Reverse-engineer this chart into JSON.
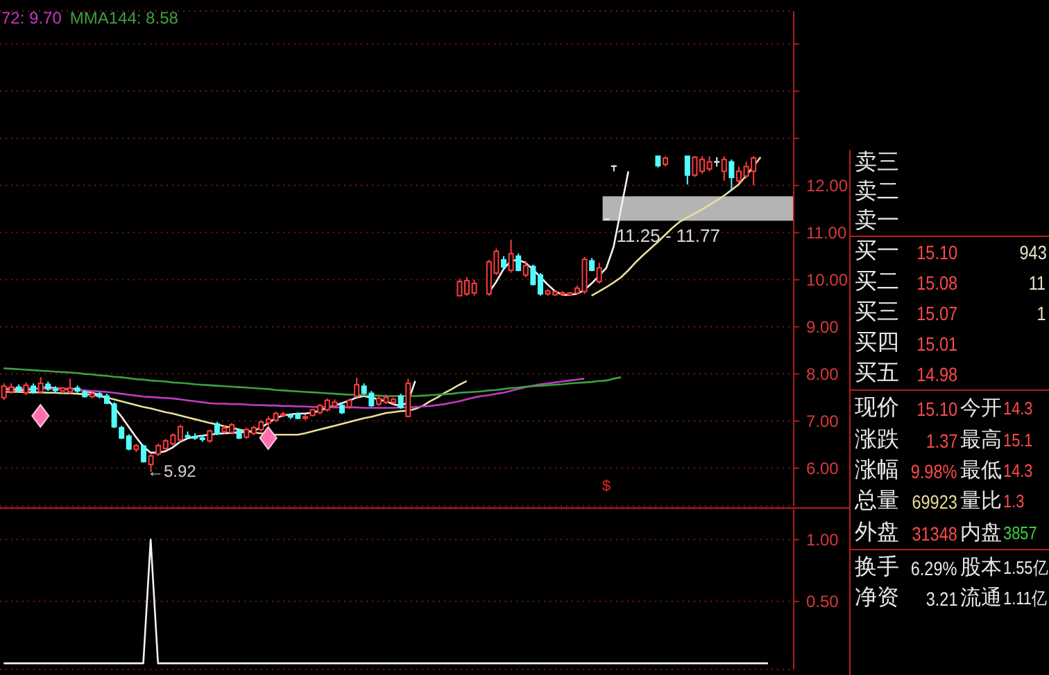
{
  "chart_data": [
    {
      "type": "candlestick",
      "categories": [
        null,
        null,
        null,
        null,
        null,
        null,
        null,
        null,
        null,
        null,
        null,
        null,
        null,
        null,
        null,
        null,
        null,
        null,
        null,
        null,
        null,
        null,
        null,
        null,
        null,
        null,
        null,
        null,
        null,
        null,
        null,
        null,
        null,
        null,
        null,
        null,
        null,
        null,
        null,
        null,
        null,
        null,
        null,
        null,
        null,
        null,
        null,
        null,
        null,
        null,
        null,
        null,
        null,
        null,
        null,
        null,
        null,
        null,
        null,
        null,
        null,
        null,
        null,
        null,
        null,
        null,
        null,
        null,
        null,
        null,
        null,
        null,
        null,
        null,
        null,
        null,
        null,
        null,
        null,
        null,
        null,
        null,
        null,
        null,
        null,
        null,
        null,
        null,
        null,
        null,
        null,
        null,
        null,
        null,
        null,
        null,
        null,
        null,
        null,
        null,
        null,
        null,
        null,
        null,
        null,
        null,
        null,
        null
      ],
      "ohlc": [
        [
          7.5,
          7.8,
          7.45,
          7.74
        ],
        [
          7.62,
          7.8,
          7.58,
          7.72
        ],
        [
          7.72,
          7.78,
          7.6,
          7.65
        ],
        [
          7.6,
          7.82,
          7.55,
          7.76
        ],
        [
          7.74,
          7.8,
          7.58,
          7.62
        ],
        [
          7.62,
          7.93,
          7.6,
          7.8
        ],
        [
          7.78,
          7.84,
          7.64,
          7.68
        ],
        [
          7.68,
          7.74,
          7.6,
          7.66
        ],
        [
          7.64,
          7.72,
          7.58,
          7.7
        ],
        [
          7.62,
          7.9,
          7.58,
          7.7
        ],
        [
          7.7,
          7.76,
          7.6,
          7.64
        ],
        [
          7.62,
          7.66,
          7.5,
          7.52
        ],
        [
          7.52,
          7.62,
          7.48,
          7.58
        ],
        [
          7.58,
          7.62,
          7.48,
          7.52
        ],
        [
          7.53,
          7.58,
          7.36,
          7.38
        ],
        [
          7.36,
          7.4,
          6.85,
          6.88
        ],
        [
          6.86,
          6.9,
          6.62,
          6.64
        ],
        [
          6.68,
          6.72,
          6.38,
          6.41
        ],
        [
          6.4,
          6.52,
          6.34,
          6.48
        ],
        [
          6.47,
          6.5,
          6.12,
          6.14
        ],
        [
          6.08,
          6.3,
          5.92,
          6.26
        ],
        [
          6.3,
          6.52,
          6.26,
          6.48
        ],
        [
          6.42,
          6.62,
          6.38,
          6.58
        ],
        [
          6.52,
          6.74,
          6.48,
          6.7
        ],
        [
          6.6,
          6.92,
          6.56,
          6.88
        ],
        [
          6.69,
          6.78,
          6.62,
          6.67
        ],
        [
          6.67,
          6.74,
          6.6,
          6.66
        ],
        [
          6.64,
          6.7,
          6.56,
          6.62
        ],
        [
          6.58,
          6.82,
          6.54,
          6.79
        ],
        [
          6.94,
          6.98,
          6.7,
          6.73
        ],
        [
          6.78,
          6.9,
          6.74,
          6.85
        ],
        [
          6.76,
          6.96,
          6.72,
          6.92
        ],
        [
          6.8,
          6.84,
          6.62,
          6.64
        ],
        [
          6.66,
          6.86,
          6.62,
          6.82
        ],
        [
          6.74,
          6.9,
          6.7,
          6.86
        ],
        [
          6.82,
          7.02,
          6.78,
          6.98
        ],
        [
          6.96,
          7.1,
          6.9,
          7.04
        ],
        [
          7.02,
          7.2,
          6.98,
          7.16
        ],
        [
          7.14,
          7.2,
          7.08,
          7.15
        ],
        [
          7.12,
          7.16,
          7.04,
          7.09
        ],
        [
          7.15,
          7.18,
          7.04,
          7.06
        ],
        [
          7.08,
          7.14,
          7.02,
          7.09
        ],
        [
          7.12,
          7.26,
          7.1,
          7.24
        ],
        [
          7.18,
          7.36,
          7.14,
          7.33
        ],
        [
          7.24,
          7.48,
          7.2,
          7.44
        ],
        [
          7.32,
          7.46,
          7.28,
          7.4
        ],
        [
          7.33,
          7.4,
          7.15,
          7.18
        ],
        [
          7.3,
          7.48,
          7.26,
          7.44
        ],
        [
          7.53,
          7.92,
          7.5,
          7.77
        ],
        [
          7.74,
          7.8,
          7.56,
          7.59
        ],
        [
          7.59,
          7.64,
          7.3,
          7.33
        ],
        [
          7.36,
          7.52,
          7.32,
          7.48
        ],
        [
          7.4,
          7.56,
          7.36,
          7.5
        ],
        [
          7.4,
          7.5,
          7.36,
          7.46
        ],
        [
          7.53,
          7.58,
          7.26,
          7.29
        ],
        [
          7.1,
          7.9,
          7.08,
          7.8
        ],
        null,
        null,
        null,
        null,
        null,
        null,
        [
          9.66,
          10.02,
          9.66,
          9.96
        ],
        [
          9.7,
          10.05,
          9.66,
          9.98
        ],
        [
          9.72,
          10.0,
          9.66,
          9.92
        ],
        null,
        [
          9.7,
          10.42,
          9.66,
          10.38
        ],
        [
          10.14,
          10.66,
          10.1,
          10.6
        ],
        [
          10.42,
          10.5,
          10.24,
          10.27
        ],
        [
          10.2,
          10.85,
          10.15,
          10.55
        ],
        [
          10.5,
          10.56,
          10.18,
          10.2
        ],
        [
          10.1,
          10.4,
          10.05,
          10.3
        ],
        [
          10.28,
          10.32,
          9.88,
          9.9
        ],
        [
          10.1,
          10.14,
          9.66,
          9.7
        ],
        [
          9.7,
          9.8,
          9.66,
          9.76
        ],
        [
          9.68,
          9.78,
          9.66,
          9.74
        ],
        [
          9.7,
          9.76,
          9.66,
          9.72
        ],
        [
          9.68,
          9.74,
          9.66,
          9.72
        ],
        [
          9.72,
          9.88,
          9.68,
          9.82
        ],
        [
          9.75,
          10.48,
          9.7,
          10.43
        ],
        [
          10.4,
          10.46,
          10.18,
          10.2
        ],
        [
          9.96,
          10.36,
          9.92,
          10.25
        ],
        [
          11.28,
          11.28,
          11.28,
          11.28
        ],
        [
          12.41,
          12.41,
          12.3,
          12.41
        ],
        null,
        null,
        null,
        null,
        null,
        [
          12.62,
          12.62,
          12.38,
          12.42
        ],
        [
          12.45,
          12.62,
          12.4,
          12.58
        ],
        null,
        null,
        [
          12.62,
          12.62,
          12.02,
          12.22
        ],
        [
          12.22,
          12.62,
          12.18,
          12.6
        ],
        [
          12.3,
          12.62,
          12.25,
          12.55
        ],
        [
          12.35,
          12.62,
          12.3,
          12.5
        ],
        [
          12.5,
          12.6,
          12.4,
          12.5
        ],
        [
          12.3,
          12.62,
          12.1,
          12.55
        ],
        [
          12.5,
          12.55,
          11.9,
          12.17
        ],
        [
          12.1,
          12.4,
          12.05,
          12.3
        ],
        [
          12.2,
          12.5,
          12.15,
          12.4
        ],
        [
          12.3,
          12.62,
          12.0,
          12.58
        ],
        null,
        null,
        null,
        null,
        null
      ],
      "series": [
        {
          "type": "line",
          "color": "#f2f2f2",
          "values": [
            7.68,
            7.68,
            7.66,
            7.66,
            7.68,
            7.7,
            7.72,
            7.7,
            7.68,
            7.68,
            7.68,
            7.64,
            7.6,
            7.56,
            7.48,
            7.3,
            7.1,
            6.88,
            6.66,
            6.46,
            6.33,
            6.33,
            6.36,
            6.44,
            6.56,
            6.63,
            6.67,
            6.69,
            6.71,
            6.73,
            6.74,
            6.75,
            6.76,
            6.77,
            6.79,
            6.86,
            6.96,
            7.06,
            7.12,
            7.14,
            7.16,
            7.16,
            7.18,
            7.22,
            7.28,
            7.33,
            7.38,
            7.43,
            7.5,
            7.53,
            7.5,
            7.46,
            7.42,
            7.36,
            7.32,
            7.4,
            7.85,
            null,
            null,
            null,
            null,
            null,
            null,
            null,
            null,
            null,
            9.72,
            9.95,
            10.22,
            10.4,
            10.42,
            10.36,
            10.22,
            10.06,
            9.9,
            9.76,
            9.68,
            9.68,
            9.7,
            9.78,
            9.92,
            10.08,
            10.25,
            10.7,
            11.5,
            12.3,
            null,
            null,
            null,
            null,
            null,
            null,
            null,
            null,
            null,
            null,
            null,
            null,
            null,
            null,
            null,
            null,
            null,
            null,
            null,
            null,
            null,
            null
          ]
        },
        {
          "type": "line",
          "color": "#e8df9a",
          "values": [
            7.62,
            7.62,
            7.62,
            7.61,
            7.61,
            7.61,
            7.6,
            7.6,
            7.59,
            7.59,
            7.58,
            7.57,
            7.56,
            7.53,
            7.5,
            7.46,
            7.42,
            7.38,
            7.34,
            7.3,
            7.27,
            7.23,
            7.19,
            7.16,
            7.12,
            7.08,
            7.04,
            7.0,
            6.96,
            6.93,
            6.89,
            6.86,
            6.82,
            6.79,
            6.76,
            6.74,
            6.72,
            6.71,
            6.71,
            6.71,
            6.71,
            6.74,
            6.78,
            6.82,
            6.86,
            6.9,
            6.94,
            6.98,
            7.02,
            7.06,
            7.09,
            7.13,
            7.17,
            7.19,
            7.21,
            7.22,
            7.26,
            7.32,
            7.42,
            7.5,
            7.6,
            7.68,
            7.77,
            7.85,
            null,
            null,
            null,
            null,
            null,
            null,
            null,
            null,
            null,
            null,
            null,
            null,
            null,
            null,
            null,
            null,
            9.66,
            9.75,
            9.84,
            9.94,
            10.05,
            10.2,
            10.37,
            10.52,
            10.66,
            10.8,
            10.95,
            11.1,
            11.23,
            11.32,
            11.4,
            11.49,
            11.58,
            11.68,
            11.78,
            11.9,
            12.02,
            12.2,
            12.4,
            12.6,
            null,
            null,
            null,
            null
          ]
        },
        {
          "type": "line",
          "name": "72: 9.70",
          "color": "#c23cc2",
          "values": [
            7.7,
            7.7,
            7.7,
            7.7,
            7.7,
            7.7,
            7.69,
            7.69,
            7.68,
            7.67,
            7.66,
            7.65,
            7.64,
            7.63,
            7.62,
            7.6,
            7.58,
            7.56,
            7.54,
            7.52,
            7.51,
            7.5,
            7.49,
            7.48,
            7.46,
            7.44,
            7.42,
            7.4,
            7.38,
            7.37,
            7.37,
            7.36,
            7.36,
            7.35,
            7.34,
            7.34,
            7.33,
            7.33,
            7.32,
            7.32,
            7.31,
            7.31,
            7.3,
            7.3,
            7.3,
            7.29,
            7.29,
            7.29,
            7.29,
            7.28,
            7.28,
            7.28,
            7.28,
            7.28,
            7.29,
            7.29,
            7.3,
            7.31,
            7.32,
            7.34,
            7.36,
            7.39,
            7.42,
            7.46,
            7.5,
            7.53,
            7.55,
            7.58,
            7.6,
            7.64,
            7.68,
            7.72,
            7.75,
            7.78,
            7.8,
            7.82,
            7.84,
            7.86,
            7.88,
            7.9,
            null,
            null,
            null,
            null,
            null,
            null,
            null,
            null,
            null,
            null,
            null,
            null,
            null,
            null,
            null,
            null,
            null,
            null,
            null,
            null,
            null,
            null,
            null,
            null,
            null,
            null,
            null,
            null
          ]
        },
        {
          "type": "line",
          "name": "MMA144: 8.58",
          "color": "#3fa03f",
          "values": [
            8.12,
            8.11,
            8.1,
            8.09,
            8.08,
            8.07,
            8.06,
            8.05,
            8.04,
            8.03,
            8.02,
            8.0,
            7.99,
            7.97,
            7.96,
            7.94,
            7.93,
            7.91,
            7.89,
            7.88,
            7.86,
            7.85,
            7.84,
            7.82,
            7.81,
            7.8,
            7.78,
            7.77,
            7.76,
            7.75,
            7.74,
            7.73,
            7.72,
            7.71,
            7.7,
            7.69,
            7.68,
            7.66,
            7.65,
            7.64,
            7.63,
            7.62,
            7.61,
            7.6,
            7.59,
            7.58,
            7.57,
            7.56,
            7.56,
            7.55,
            7.54,
            7.54,
            7.53,
            7.53,
            7.53,
            7.53,
            7.53,
            7.54,
            7.55,
            7.56,
            7.57,
            7.58,
            7.6,
            7.61,
            7.62,
            7.63,
            7.65,
            7.66,
            7.68,
            7.7,
            7.71,
            7.73,
            7.74,
            7.75,
            7.76,
            7.77,
            7.78,
            7.8,
            7.81,
            7.82,
            7.83,
            7.85,
            7.86,
            7.9,
            7.93,
            null,
            null,
            null,
            null,
            null,
            null,
            null,
            null,
            null,
            null,
            null,
            null,
            null,
            null,
            null,
            null,
            null,
            null,
            null,
            null,
            null,
            null,
            null
          ]
        },
        {
          "type": "scatter",
          "marker": "diamond",
          "color": "#ff6fb0",
          "values": [
            null,
            null,
            null,
            null,
            null,
            7.11,
            null,
            null,
            null,
            null,
            null,
            null,
            null,
            null,
            null,
            null,
            null,
            null,
            null,
            null,
            null,
            null,
            null,
            null,
            null,
            null,
            null,
            null,
            null,
            null,
            null,
            null,
            null,
            null,
            null,
            null,
            6.64,
            null,
            null,
            null,
            null,
            null,
            null,
            null,
            null,
            null,
            null,
            null,
            null,
            null,
            null,
            null,
            null,
            null,
            null,
            null,
            null,
            null,
            null,
            null,
            null,
            null,
            null,
            null,
            null,
            null,
            null,
            null,
            null,
            null,
            null,
            null,
            null,
            null,
            null,
            null,
            null,
            null,
            null,
            null,
            null,
            null,
            null,
            null,
            null,
            null,
            null,
            null,
            null,
            null,
            null,
            null,
            null,
            null,
            null,
            null,
            null,
            null,
            null,
            null,
            null,
            null,
            null,
            null,
            null,
            null,
            null,
            null
          ]
        }
      ],
      "ylim": [
        5.2,
        15.7
      ],
      "yticks": [
        {
          "value": 6,
          "label": "6.00"
        },
        {
          "value": 7,
          "label": "7.00"
        },
        {
          "value": 8,
          "label": "8.00"
        },
        {
          "value": 9,
          "label": "9.00"
        },
        {
          "value": 10,
          "label": "10.00"
        },
        {
          "value": 11,
          "label": "11.00"
        },
        {
          "value": 12,
          "label": "12.00"
        },
        {
          "value": 13,
          "label": null
        },
        {
          "value": 14,
          "label": null
        },
        {
          "value": 15,
          "label": null
        }
      ],
      "grid": "y",
      "legend": "top left",
      "bands": [
        {
          "axis": "y",
          "from": 11.25,
          "to": 11.77,
          "label": "11.25 - 11.77",
          "color": "#b4b4b4"
        }
      ],
      "annotations": [
        "←5.92",
        "$"
      ]
    },
    {
      "type": "line",
      "categories": [
        null,
        null,
        null,
        null,
        null,
        null,
        null,
        null,
        null,
        null,
        null,
        null,
        null,
        null,
        null,
        null,
        null,
        null,
        null,
        null,
        null,
        null,
        null,
        null,
        null,
        null,
        null,
        null,
        null,
        null,
        null,
        null,
        null,
        null,
        null,
        null,
        null,
        null,
        null,
        null,
        null,
        null,
        null,
        null,
        null,
        null,
        null,
        null,
        null,
        null,
        null,
        null,
        null,
        null,
        null,
        null,
        null,
        null,
        null,
        null,
        null,
        null,
        null,
        null,
        null,
        null,
        null,
        null,
        null,
        null,
        null,
        null,
        null,
        null,
        null,
        null,
        null,
        null,
        null,
        null,
        null,
        null,
        null,
        null,
        null,
        null,
        null,
        null,
        null,
        null,
        null,
        null,
        null,
        null,
        null,
        null,
        null,
        null,
        null,
        null,
        null,
        null,
        null,
        null,
        null,
        null,
        null,
        null
      ],
      "values": [
        0,
        0,
        0,
        0,
        0,
        0,
        0,
        0,
        0,
        0,
        0,
        0,
        0,
        0,
        0,
        0,
        0,
        0,
        0,
        0,
        1,
        0,
        0,
        0,
        0,
        0,
        0,
        0,
        0,
        0,
        0,
        0,
        0,
        0,
        0,
        0,
        0,
        0,
        0,
        0,
        0,
        0,
        0,
        0,
        0,
        0,
        0,
        0,
        0,
        0,
        0,
        0,
        0,
        0,
        0,
        0,
        0,
        0,
        0,
        0,
        0,
        0,
        0,
        0,
        0,
        0,
        0,
        0,
        0,
        0,
        0,
        0,
        0,
        0,
        0,
        0,
        0,
        0,
        0,
        0,
        0,
        0,
        0,
        0,
        0,
        0,
        0,
        0,
        0,
        0,
        0,
        0,
        0,
        0,
        0,
        0,
        0,
        0,
        0,
        0,
        0,
        0,
        0,
        0,
        0,
        null,
        null,
        null
      ],
      "color": "#f2f2f2",
      "ylim": [
        -0.05,
        1.25
      ],
      "yticks": [
        {
          "value": 0.5,
          "label": "0.50"
        },
        {
          "value": 1,
          "label": "1.00"
        }
      ],
      "grid": "y"
    },
    {
      "type": "other",
      "annotations": [
        "卖三",
        "卖二",
        "卖一",
        "买一",
        "15.10",
        "943",
        "买二",
        "15.08",
        "11",
        "买三",
        "15.07",
        "1",
        "买四",
        "15.01",
        "买五",
        "14.98",
        "现价",
        "15.10",
        "今开",
        "14.3",
        "涨跌",
        "1.37",
        "最高",
        "15.1",
        "涨幅",
        "9.98%",
        "最低",
        "14.3",
        "总量",
        "69923",
        "量比",
        "1.3",
        "外盘",
        "31348",
        "内盘",
        "3857",
        "换手",
        "6.29%",
        "股本",
        "1.55亿",
        "净资",
        "3.21",
        "流通",
        "1.11亿"
      ]
    }
  ]
}
